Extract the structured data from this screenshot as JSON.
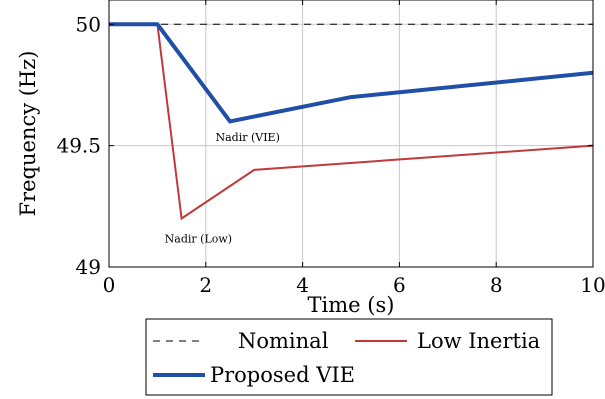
{
  "chart_data": {
    "type": "line",
    "xlabel": "Time (s)",
    "ylabel": "Frequency (Hz)",
    "xlim": [
      0,
      10
    ],
    "ylim": [
      49,
      50.1
    ],
    "x_ticks": [
      0,
      2,
      4,
      6,
      8,
      10
    ],
    "y_ticks": [
      49,
      49.5,
      50
    ],
    "grid": true,
    "legend_position": "bottom",
    "series": [
      {
        "name": "Nominal",
        "color": "#000000",
        "style": "dashed",
        "x": [
          0,
          10
        ],
        "y": [
          50,
          50
        ]
      },
      {
        "name": "Low Inertia",
        "color": "#c0393b",
        "style": "solid",
        "x": [
          0,
          1,
          1.5,
          3,
          10
        ],
        "y": [
          50,
          50,
          49.2,
          49.4,
          49.5
        ]
      },
      {
        "name": "Proposed VIE",
        "color": "#1f4fa6",
        "style": "solid-thick",
        "x": [
          0,
          1,
          2.5,
          5,
          10
        ],
        "y": [
          50,
          50,
          49.6,
          49.7,
          49.8
        ]
      }
    ],
    "annotations": [
      {
        "text": "Nadir (VIE)",
        "x": 2.2,
        "y": 49.52
      },
      {
        "text": "Nadir (Low)",
        "x": 1.15,
        "y": 49.1
      }
    ]
  }
}
